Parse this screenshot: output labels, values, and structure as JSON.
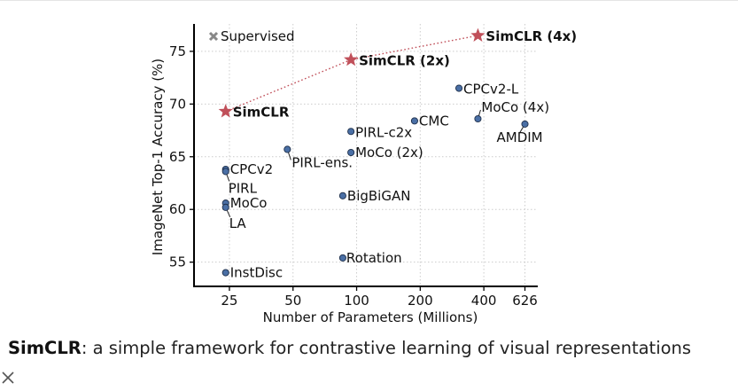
{
  "chart_data": {
    "type": "scatter",
    "xscale": "log",
    "xlabel": "Number of Parameters (Millions)",
    "ylabel": "ImageNet Top-1 Accuracy (%)",
    "xticks": [
      25,
      50,
      100,
      200,
      400,
      626
    ],
    "yticks": [
      55,
      60,
      65,
      70,
      75
    ],
    "xlim": [
      17,
      720
    ],
    "ylim": [
      52.7,
      77.6
    ],
    "grid": true,
    "legend": {
      "position": "top-left",
      "label": "Supervised",
      "color": "#888888"
    },
    "simclr_line": [
      "SimCLR",
      "SimCLR (2x)",
      "SimCLR (4x)"
    ],
    "points": [
      {
        "label": "SimCLR",
        "x": 24,
        "y": 69.3,
        "kind": "star",
        "bold": true
      },
      {
        "label": "SimCLR (2x)",
        "x": 94,
        "y": 74.2,
        "kind": "star",
        "bold": true
      },
      {
        "label": "SimCLR (4x)",
        "x": 375,
        "y": 76.5,
        "kind": "star",
        "bold": true
      },
      {
        "label": "CPCv2-L",
        "x": 305,
        "y": 71.5,
        "kind": "dot"
      },
      {
        "label": "MoCo (4x)",
        "x": 375,
        "y": 68.6,
        "kind": "dot"
      },
      {
        "label": "AMDIM",
        "x": 626,
        "y": 68.1,
        "kind": "dot"
      },
      {
        "label": "CMC",
        "x": 188,
        "y": 68.4,
        "kind": "dot"
      },
      {
        "label": "PIRL-c2x",
        "x": 94,
        "y": 67.4,
        "kind": "dot"
      },
      {
        "label": "MoCo (2x)",
        "x": 94,
        "y": 65.4,
        "kind": "dot"
      },
      {
        "label": "PIRL-ens.",
        "x": 47,
        "y": 65.7,
        "kind": "dot"
      },
      {
        "label": "CPCv2",
        "x": 24,
        "y": 63.8,
        "kind": "dot"
      },
      {
        "label": "PIRL",
        "x": 24,
        "y": 63.6,
        "kind": "dot"
      },
      {
        "label": "MoCo",
        "x": 24,
        "y": 60.6,
        "kind": "dot"
      },
      {
        "label": "LA",
        "x": 24,
        "y": 60.2,
        "kind": "dot"
      },
      {
        "label": "BigBiGAN",
        "x": 86,
        "y": 61.3,
        "kind": "dot"
      },
      {
        "label": "Rotation",
        "x": 86,
        "y": 55.4,
        "kind": "dot"
      },
      {
        "label": "InstDisc",
        "x": 24,
        "y": 54.0,
        "kind": "dot"
      }
    ]
  },
  "caption": {
    "bold": "SimCLR",
    "rest": ": a simple framework for contrastive learning of visual representations"
  },
  "colors": {
    "star": "#c0505a",
    "dot": "#4a6fa5",
    "axis": "#000000",
    "grid": "#cccccc"
  },
  "icons": {
    "close": "close-icon"
  }
}
